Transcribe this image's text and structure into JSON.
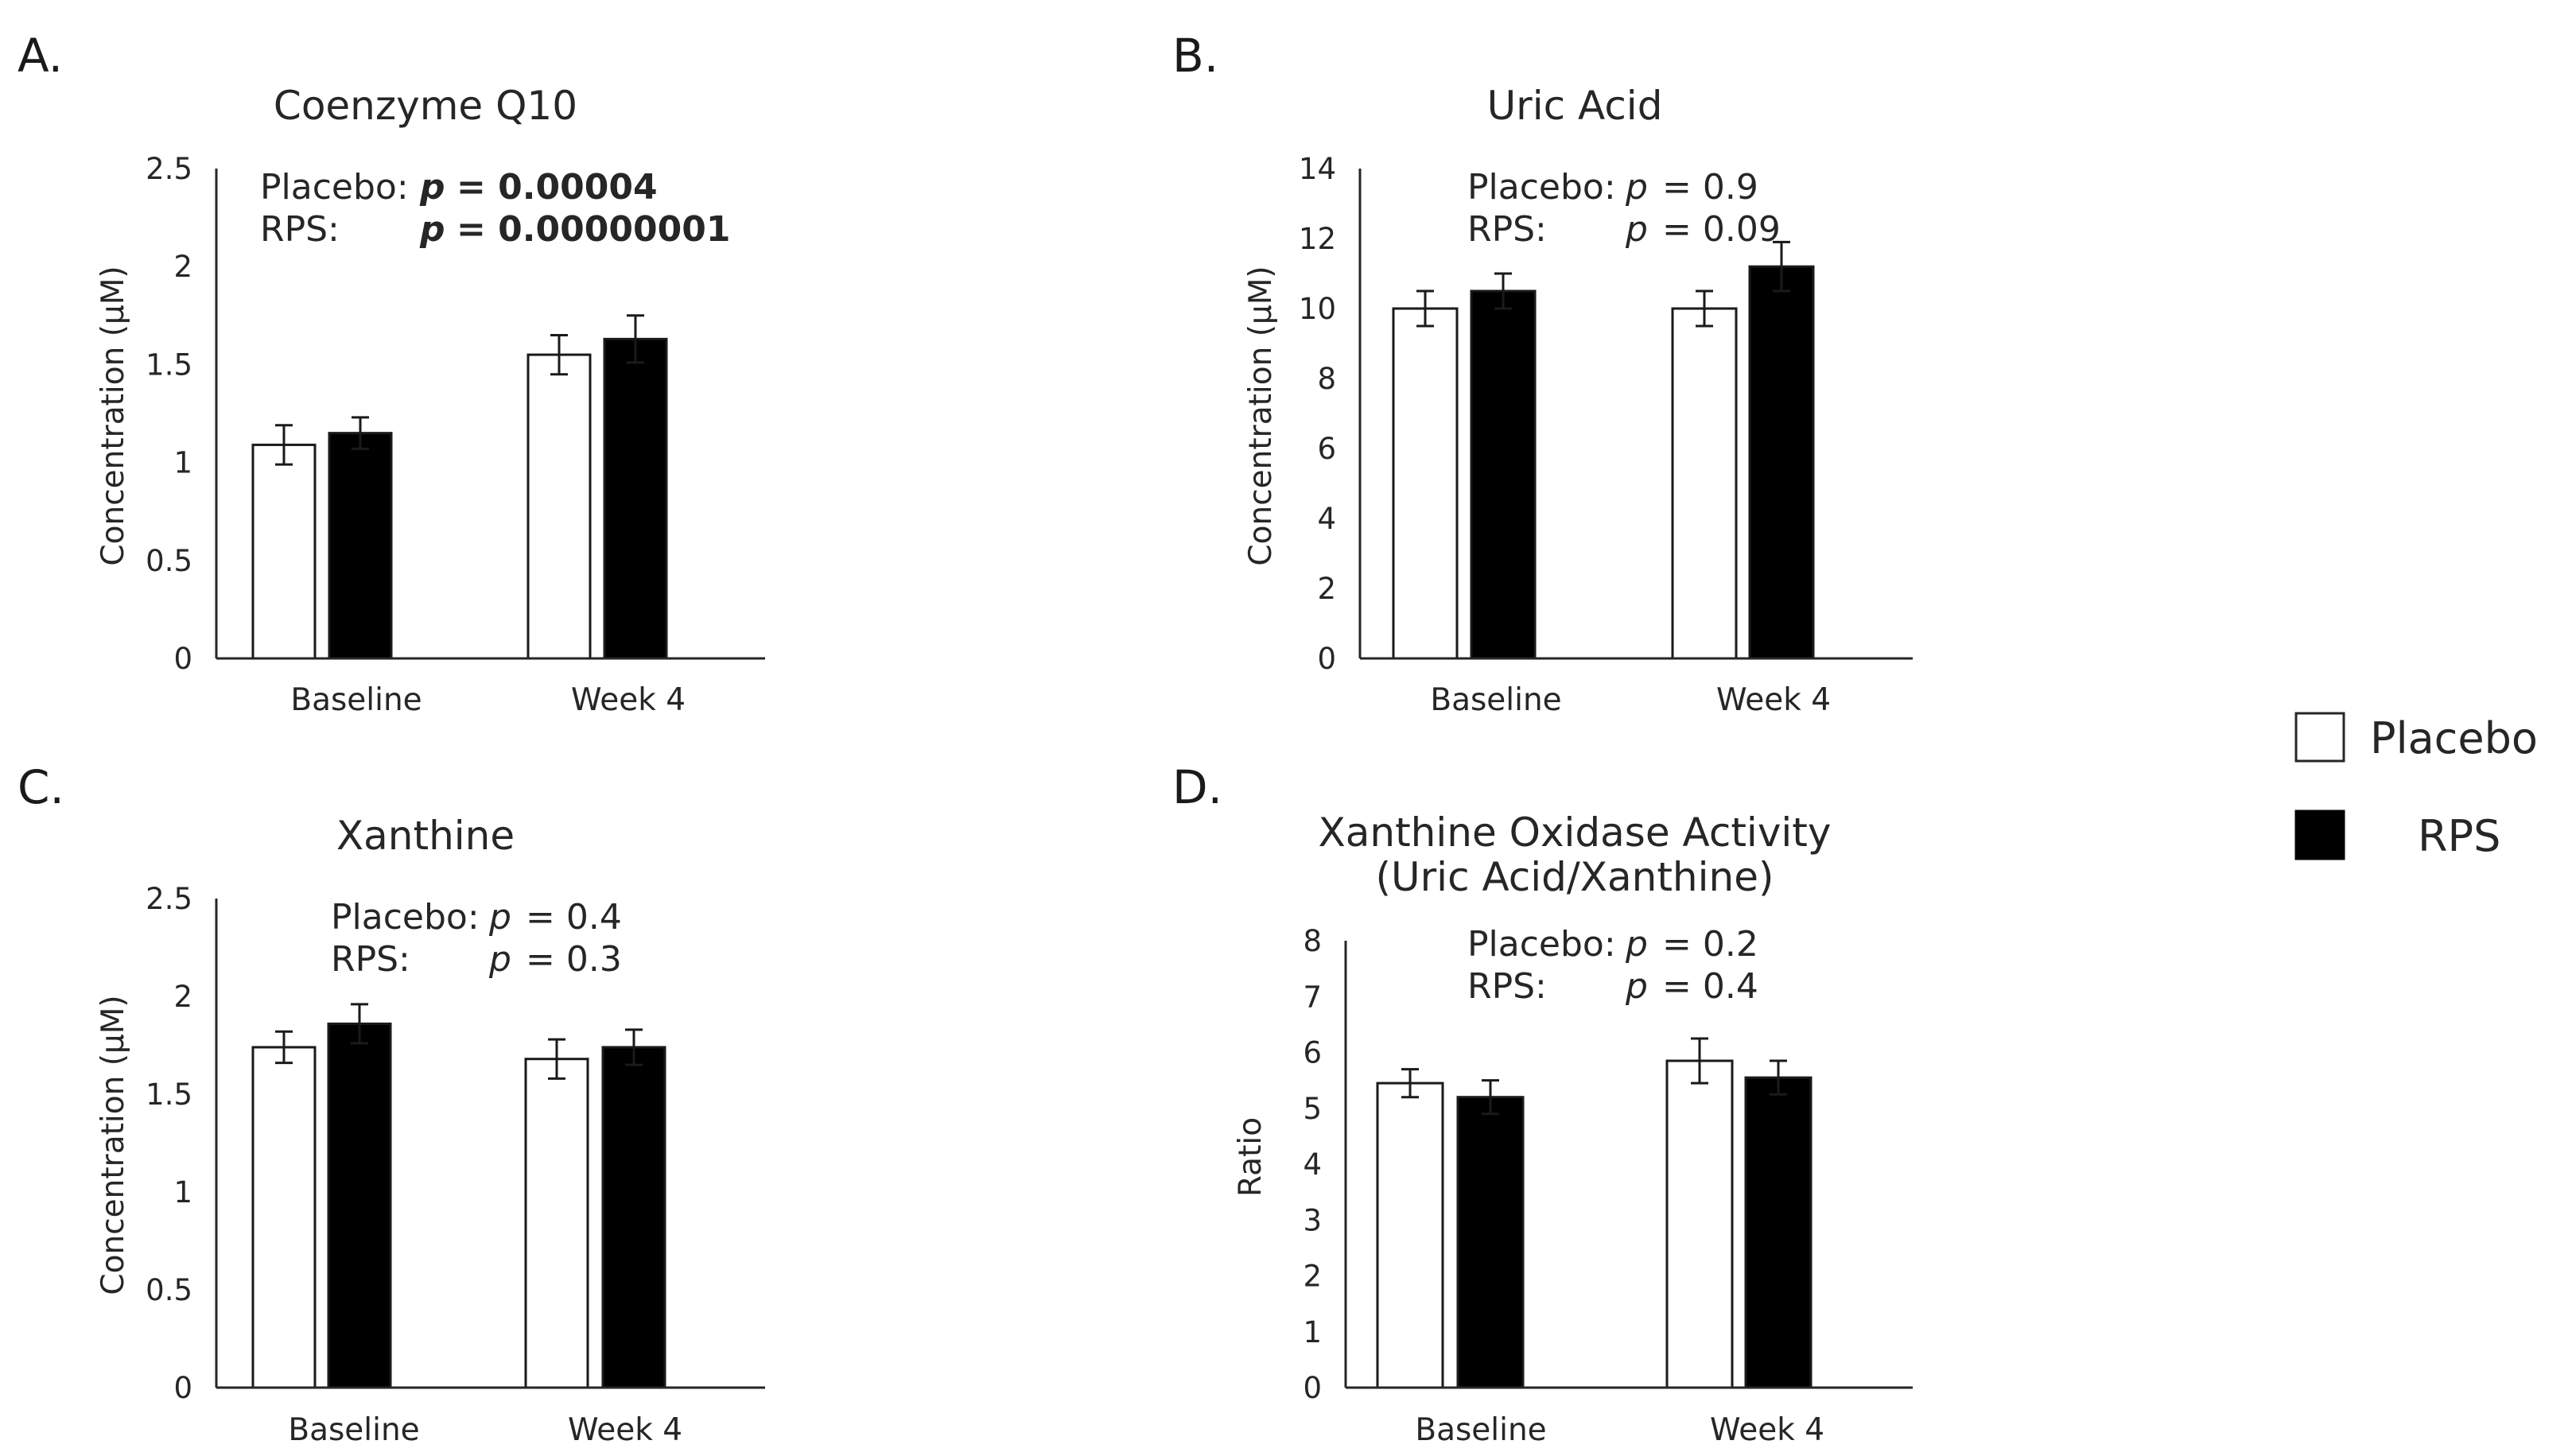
{
  "legend": {
    "placebo_label": "Placebo",
    "rps_label": "RPS"
  },
  "colors": {
    "placebo_fill": "#ffffff",
    "rps_fill": "#000000",
    "axis": "#262626"
  },
  "chart_data": [
    {
      "panel": "A.",
      "type": "bar",
      "title": "Coenzyme Q10",
      "title_lines": [
        "Coenzyme Q10"
      ],
      "ylabel": "Concentration (μM)",
      "ylim": [
        0,
        2.5
      ],
      "yticks": [
        "0",
        "0.5",
        "1",
        "1.5",
        "2",
        "2.5"
      ],
      "categories": [
        "Baseline",
        "Week 4"
      ],
      "series": [
        {
          "name": "Placebo",
          "values": [
            1.09,
            1.55
          ],
          "errors": [
            0.1,
            0.1
          ]
        },
        {
          "name": "RPS",
          "values": [
            1.15,
            1.63
          ],
          "errors": [
            0.08,
            0.12
          ]
        }
      ],
      "stats": [
        {
          "label": "Placebo:",
          "p": "p",
          "text": "= 0.00004",
          "bold": true
        },
        {
          "label": "RPS:",
          "p": "p",
          "text": "= 0.00000001",
          "bold": true
        }
      ]
    },
    {
      "panel": "B.",
      "type": "bar",
      "title": "Uric Acid",
      "title_lines": [
        "Uric Acid"
      ],
      "ylabel": "Concentration (μM)",
      "ylim": [
        0,
        14
      ],
      "yticks": [
        "0",
        "2",
        "4",
        "6",
        "8",
        "10",
        "12",
        "14"
      ],
      "categories": [
        "Baseline",
        "Week 4"
      ],
      "series": [
        {
          "name": "Placebo",
          "values": [
            10.0,
            10.0
          ],
          "errors": [
            0.5,
            0.5
          ]
        },
        {
          "name": "RPS",
          "values": [
            10.5,
            11.2
          ],
          "errors": [
            0.5,
            0.7
          ]
        }
      ],
      "stats": [
        {
          "label": "Placebo:",
          "p": "p",
          "text": "= 0.9",
          "bold": false
        },
        {
          "label": "RPS:",
          "p": "p",
          "text": "= 0.09",
          "bold": false
        }
      ]
    },
    {
      "panel": "C.",
      "type": "bar",
      "title": "Xanthine",
      "title_lines": [
        "Xanthine"
      ],
      "ylabel": "Concentration (μM)",
      "ylim": [
        0,
        2.5
      ],
      "yticks": [
        "0",
        "0.5",
        "1",
        "1.5",
        "2",
        "2.5"
      ],
      "categories": [
        "Baseline",
        "Week 4"
      ],
      "series": [
        {
          "name": "Placebo",
          "values": [
            1.74,
            1.68
          ],
          "errors": [
            0.08,
            0.1
          ]
        },
        {
          "name": "RPS",
          "values": [
            1.86,
            1.74
          ],
          "errors": [
            0.1,
            0.09
          ]
        }
      ],
      "stats": [
        {
          "label": "Placebo:",
          "p": "p",
          "text": "= 0.4",
          "bold": false
        },
        {
          "label": "RPS:",
          "p": "p",
          "text": "= 0.3",
          "bold": false
        }
      ]
    },
    {
      "panel": "D.",
      "type": "bar",
      "title": "Xanthine Oxidase Activity (Uric Acid/Xanthine)",
      "title_lines": [
        "Xanthine Oxidase Activity",
        "(Uric Acid/Xanthine)"
      ],
      "ylabel": "Ratio",
      "ylim": [
        0,
        8
      ],
      "yticks": [
        "0",
        "1",
        "2",
        "3",
        "4",
        "5",
        "6",
        "7",
        "8"
      ],
      "categories": [
        "Baseline",
        "Week 4"
      ],
      "series": [
        {
          "name": "Placebo",
          "values": [
            5.45,
            5.85
          ],
          "errors": [
            0.25,
            0.4
          ]
        },
        {
          "name": "RPS",
          "values": [
            5.2,
            5.55
          ],
          "errors": [
            0.3,
            0.3
          ]
        }
      ],
      "stats": [
        {
          "label": "Placebo:",
          "p": "p",
          "text": "= 0.2",
          "bold": false
        },
        {
          "label": "RPS:",
          "p": "p",
          "text": "= 0.4",
          "bold": false
        }
      ]
    }
  ]
}
